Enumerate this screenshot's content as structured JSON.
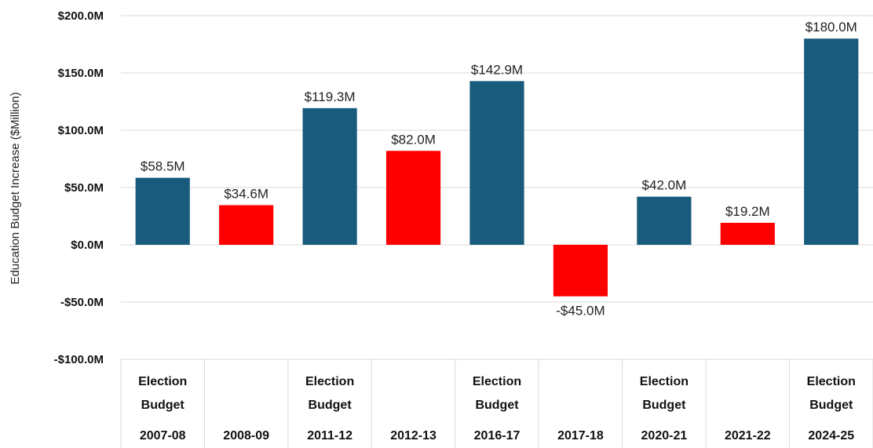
{
  "chart_data": {
    "type": "bar",
    "ylabel": "Education Budget Increase ($Million)",
    "ylim": [
      -100,
      200
    ],
    "yticks": [
      200,
      150,
      100,
      50,
      0,
      -50,
      -100
    ],
    "ytick_labels": [
      "$200.0M",
      "$150.0M",
      "$100.0M",
      "$50.0M",
      "$0.0M",
      "-$50.0M",
      "-$100.0M"
    ],
    "grid": true,
    "categories": [
      "2007-08",
      "2008-09",
      "2011-12",
      "2012-13",
      "2016-17",
      "2017-18",
      "2020-21",
      "2021-22",
      "2024-25"
    ],
    "groups": [
      "Election Budget",
      "",
      "Election Budget",
      "",
      "Election Budget",
      "",
      "Election Budget",
      "",
      "Election Budget"
    ],
    "values": [
      58.5,
      34.6,
      119.3,
      82.0,
      142.9,
      -45.0,
      42.0,
      19.2,
      180.0
    ],
    "data_labels": [
      "$58.5M",
      "$34.6M",
      "$119.3M",
      "$82.0M",
      "$142.9M",
      "-$45.0M",
      "$42.0M",
      "$19.2M",
      "$180.0M"
    ],
    "colors": [
      "#185b7d",
      "#ff0000",
      "#185b7d",
      "#ff0000",
      "#185b7d",
      "#ff0000",
      "#185b7d",
      "#ff0000",
      "#185b7d"
    ]
  }
}
